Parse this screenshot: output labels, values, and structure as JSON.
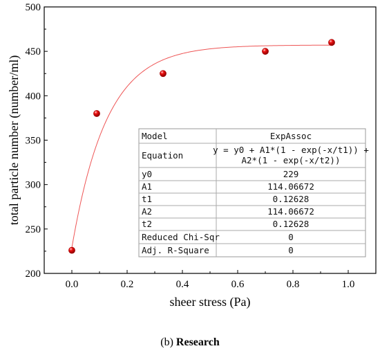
{
  "chart_data": {
    "type": "scatter",
    "xlabel": "sheer stress (Pa)",
    "ylabel": "total particle number (number/ml)",
    "xlim": [
      -0.1,
      1.1
    ],
    "ylim": [
      200,
      500
    ],
    "x_ticks": [
      "0.0",
      "0.2",
      "0.4",
      "0.6",
      "0.8",
      "1.0"
    ],
    "x_tick_values": [
      0.0,
      0.2,
      0.4,
      0.6,
      0.8,
      1.0
    ],
    "y_ticks": [
      "200",
      "250",
      "300",
      "350",
      "400",
      "450",
      "500"
    ],
    "y_tick_values": [
      200,
      250,
      300,
      350,
      400,
      450,
      500
    ],
    "grid": false,
    "series": [
      {
        "points": [
          {
            "x": 0.0,
            "y": 226
          },
          {
            "x": 0.09,
            "y": 380
          },
          {
            "x": 0.33,
            "y": 425
          },
          {
            "x": 0.7,
            "y": 450
          },
          {
            "x": 0.94,
            "y": 460
          }
        ],
        "marker_color": "#ee1111"
      }
    ],
    "fit": {
      "type": "line",
      "color": "#ee5555",
      "y0": 229,
      "A1": 114.06672,
      "t1": 0.12628,
      "A2": 114.06672,
      "t2": 0.12628,
      "x_range": [
        0.0,
        0.94
      ]
    },
    "fit_table": {
      "model_label": "Model",
      "model_value": "ExpAssoc",
      "equation_label": "Equation",
      "equation_line1": "y = y0 + A1*(1 - exp(-x/t1)) +",
      "equation_line2": "A2*(1 - exp(-x/t2))",
      "params": [
        {
          "name": "y0",
          "value": "229"
        },
        {
          "name": "A1",
          "value": "114.06672"
        },
        {
          "name": "t1",
          "value": "0.12628"
        },
        {
          "name": "A2",
          "value": "114.06672"
        },
        {
          "name": "t2",
          "value": "0.12628"
        },
        {
          "name": "Reduced Chi-Sqr",
          "value": "0"
        },
        {
          "name": "Adj. R-Square",
          "value": "0"
        }
      ]
    }
  },
  "caption": {
    "prefix": "(b) ",
    "text": "Research"
  }
}
